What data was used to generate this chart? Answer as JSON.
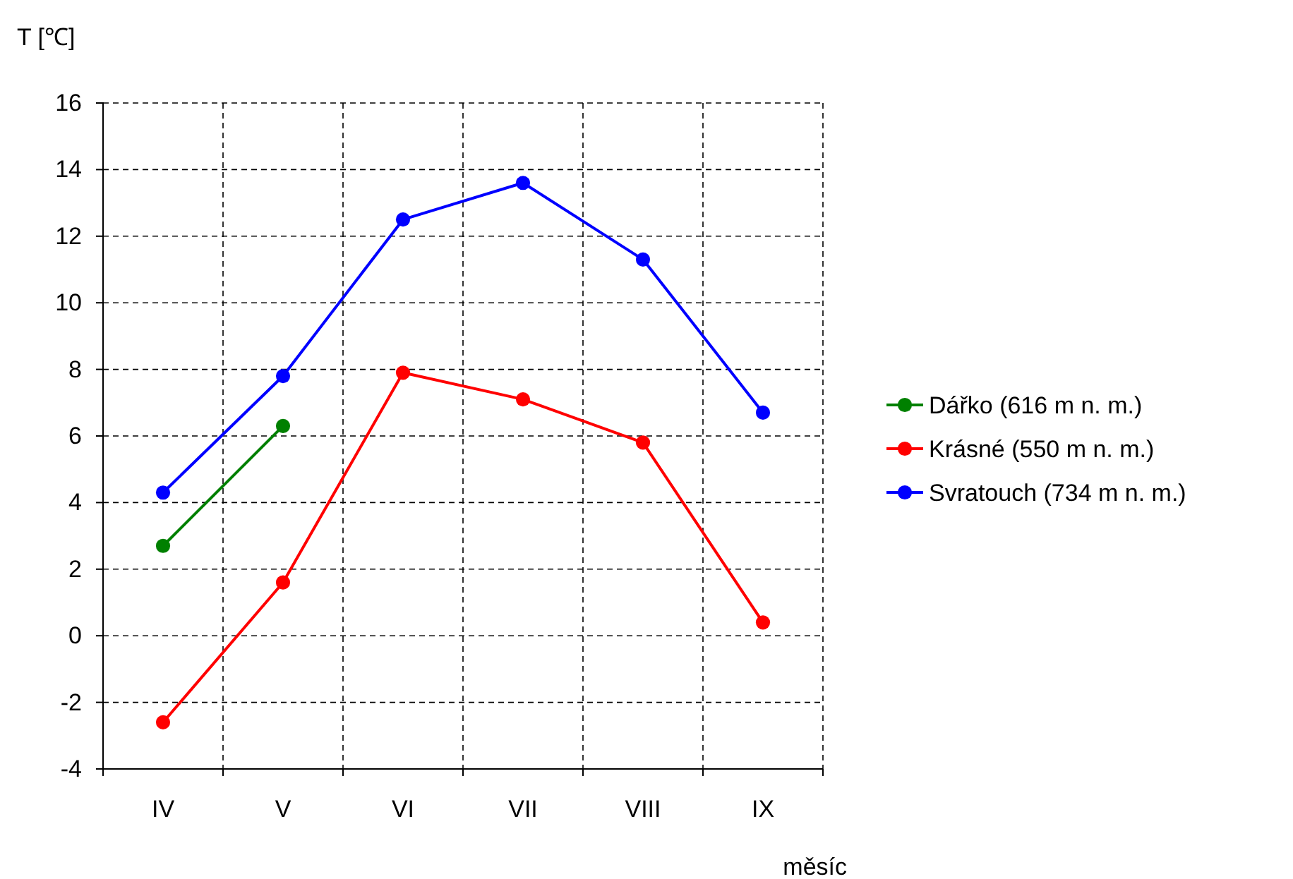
{
  "chart_data": {
    "type": "line",
    "ylabel": "T [℃]",
    "xlabel": "měsíc",
    "categories": [
      "IV",
      "V",
      "VI",
      "VII",
      "VIII",
      "IX"
    ],
    "series": [
      {
        "name": "Dářko (616 m n. m.)",
        "color": "#008000",
        "values": [
          2.7,
          6.3,
          null,
          null,
          null,
          null
        ]
      },
      {
        "name": "Krásné (550 m n. m.)",
        "color": "#ff0000",
        "values": [
          -2.6,
          1.6,
          7.9,
          7.1,
          5.8,
          0.4
        ]
      },
      {
        "name": "Svratouch (734 m n. m.)",
        "color": "#0000ff",
        "values": [
          4.3,
          7.8,
          12.5,
          13.6,
          11.3,
          6.7
        ]
      }
    ],
    "ylim": [
      -4,
      16
    ],
    "yticks": [
      -4,
      -2,
      0,
      2,
      4,
      6,
      8,
      10,
      12,
      14,
      16
    ],
    "grid": true,
    "legend": "right",
    "marker": "circle",
    "line_style": "solid"
  }
}
